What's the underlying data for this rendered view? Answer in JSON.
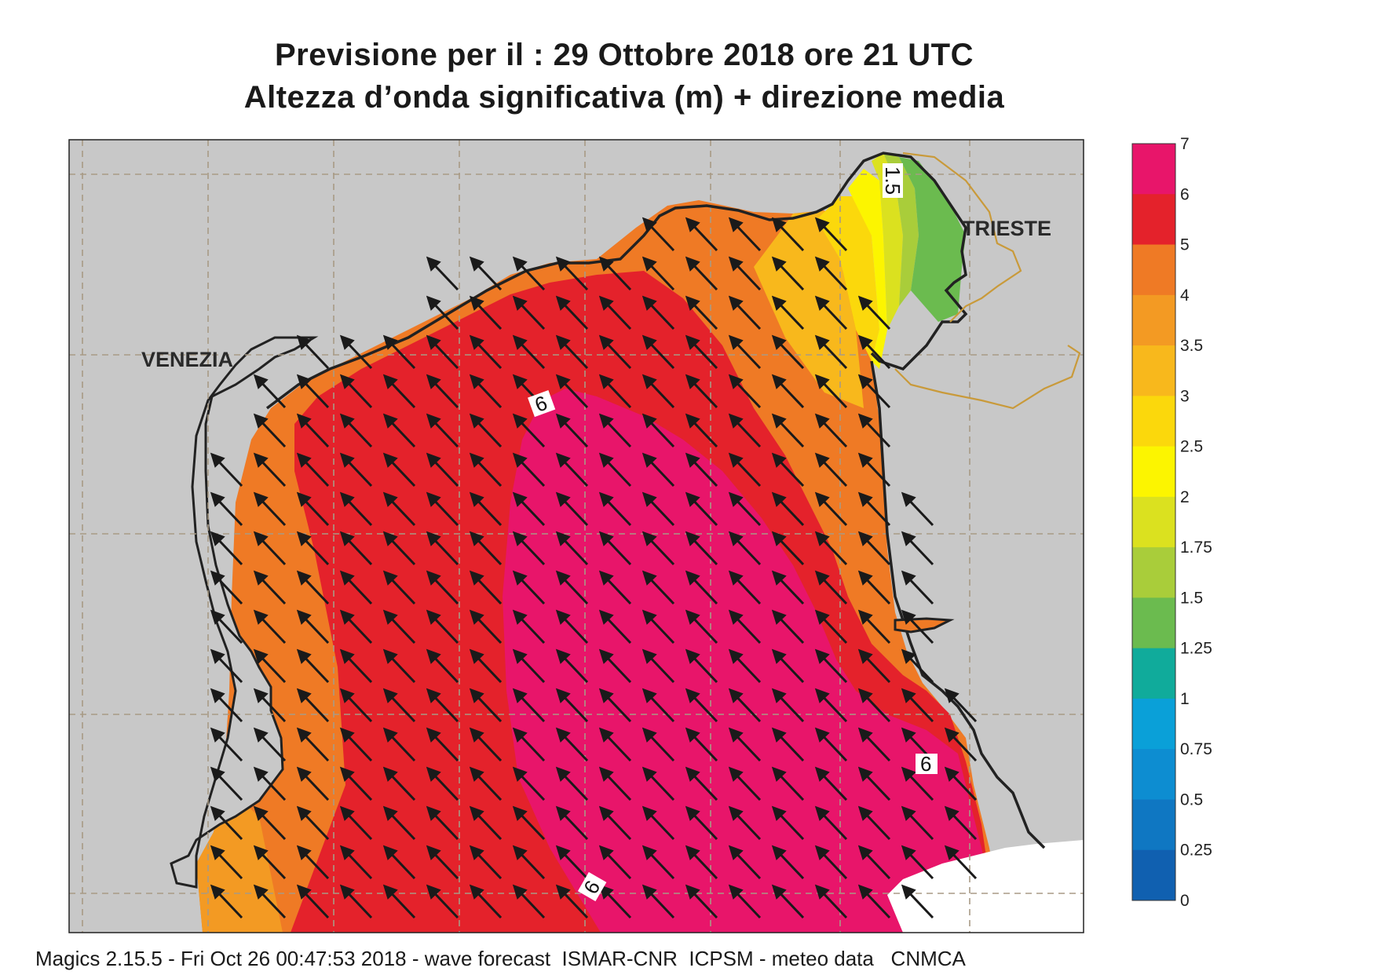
{
  "title_line1": "Previsione per il  :  29  Ottobre  2018   ore 21 UTC",
  "title_line2": "Altezza d’onda significativa (m) + direzione media",
  "footer": "Magics 2.15.5 - Fri Oct 26 00:47:53 2018 - wave forecast  ISMAR-CNR  ICPSM - meteo data   CNMCA",
  "cities": {
    "venezia": "VENEZIA",
    "trieste": "TRIESTE"
  },
  "contour_labels": [
    "1.5",
    "6",
    "6",
    "6"
  ],
  "colorbar": {
    "labels": [
      "7",
      "6",
      "5",
      "4",
      "3.5",
      "3",
      "2.5",
      "2",
      "1.75",
      "1.5",
      "1.25",
      "1",
      "0.75",
      "0.5",
      "0.25",
      "0"
    ],
    "colors": [
      "#e8156a",
      "#e4222b",
      "#ef7a25",
      "#f39a23",
      "#f8b81c",
      "#fbd80c",
      "#fcf500",
      "#dbe11f",
      "#a9cd3a",
      "#6bbb4f",
      "#10ab9b",
      "#0aa0d8",
      "#0d8dd1",
      "#0f77c2",
      "#1060b0"
    ]
  },
  "colors": {
    "land": "#c8c8c8",
    "sea_background": "#ffffff",
    "arrow": "#1a1a1a",
    "grid": "#a89a85",
    "coastline": "#222222",
    "border": "#c99a3a"
  },
  "wave_direction": "from south-east towards north-west"
}
